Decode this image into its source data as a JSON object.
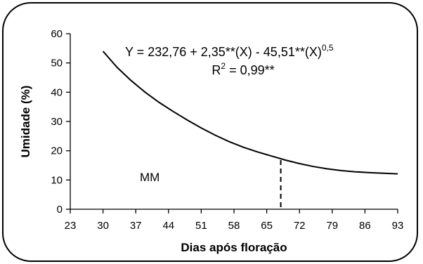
{
  "chart_data": {
    "type": "line",
    "title": "",
    "xlabel": "Dias após floração",
    "ylabel": "Umidade (%)",
    "x_ticks": [
      "23",
      "30",
      "37",
      "44",
      "51",
      "58",
      "65",
      "72",
      "79",
      "86",
      "93"
    ],
    "y_ticks": [
      "0",
      "10",
      "20",
      "30",
      "40",
      "50",
      "60"
    ],
    "ylim": [
      0,
      60
    ],
    "grid": false,
    "equation": {
      "lhs": "Y = 232,76 + 2,35**(X) - 45,51**(X)",
      "exponent": "0,5",
      "r2_prefix": "R",
      "r2_sup": "2",
      "r2_value": " = 0,99**"
    },
    "annotation_label": "MM",
    "dashed_marker": {
      "x": 68,
      "y_from": 0,
      "y_to": 16.8
    },
    "series": [
      {
        "x": [
          30,
          33,
          36,
          39,
          42,
          45,
          48,
          51,
          54,
          57,
          60,
          63,
          66,
          69,
          72,
          75,
          78,
          81,
          84,
          87,
          90,
          93
        ],
        "values": [
          54.0,
          48.5,
          44.0,
          40.0,
          36.5,
          33.4,
          30.5,
          27.8,
          25.3,
          23.1,
          21.2,
          19.6,
          18.2,
          16.8,
          15.6,
          14.6,
          13.8,
          13.2,
          12.8,
          12.5,
          12.3,
          12.1
        ]
      }
    ]
  }
}
